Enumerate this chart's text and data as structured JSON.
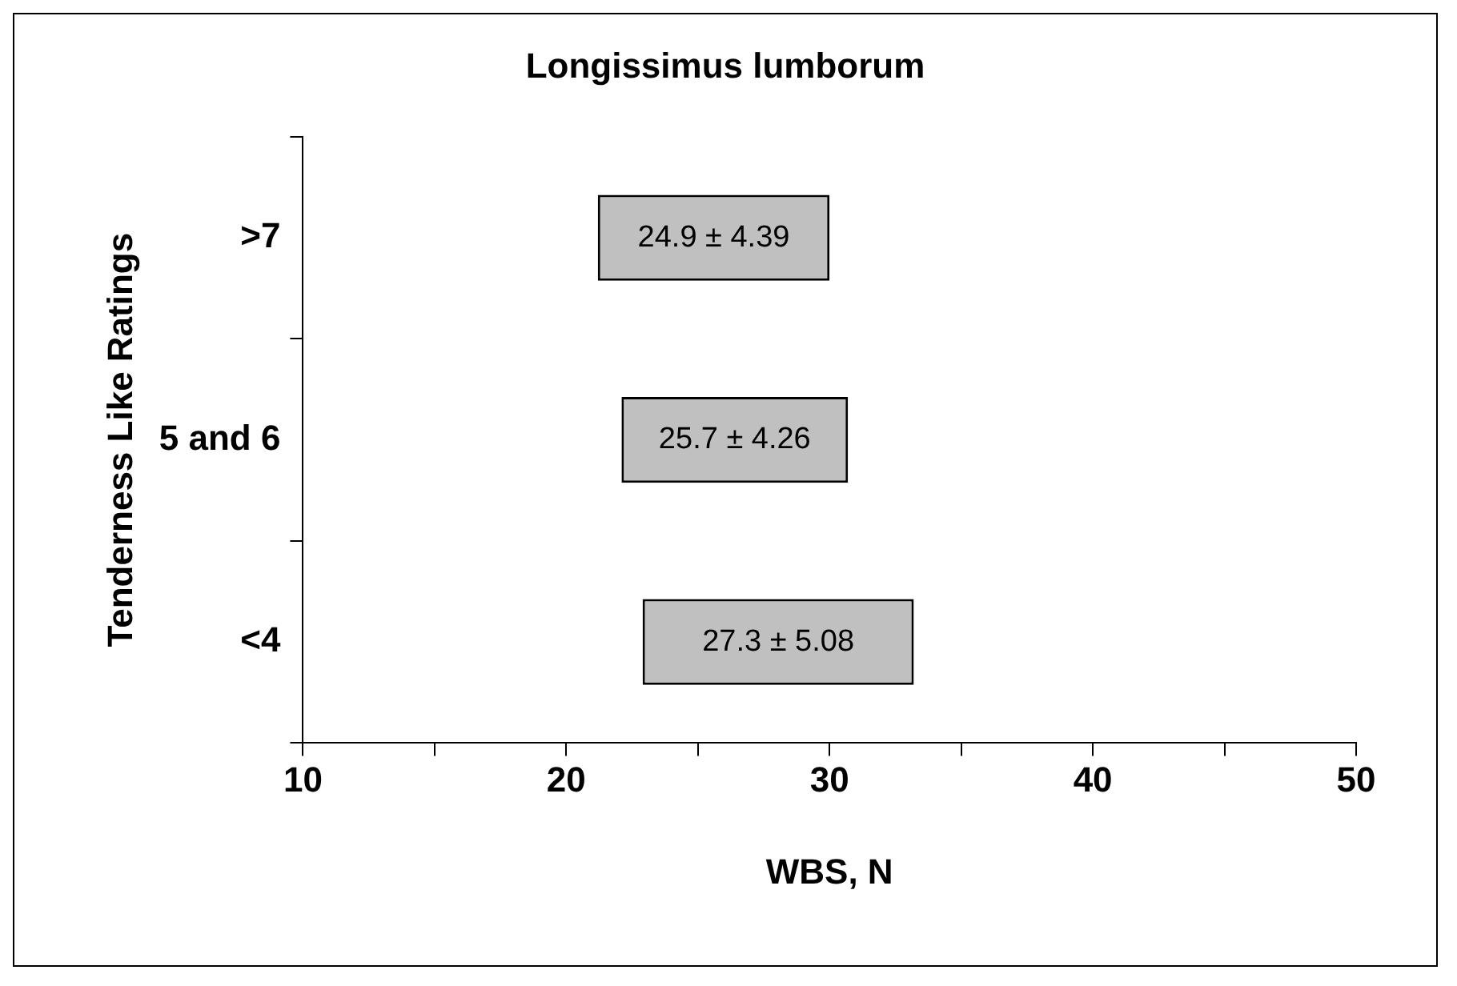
{
  "chart_data": {
    "type": "bar",
    "orientation": "horizontal",
    "title": "Longissimus lumborum",
    "xlabel": "WBS, N",
    "ylabel": "Tenderness Like Ratings",
    "categories": [
      ">7",
      "5 and 6",
      "<4"
    ],
    "base": [
      21.2,
      22.1,
      22.9
    ],
    "values": [
      8.8,
      8.6,
      10.3
    ],
    "annotations": [
      "24.9 ± 4.39",
      "25.7 ± 4.26",
      "27.3 ± 5.08"
    ],
    "color": "#c0c0c0",
    "xlim": [
      10,
      50
    ],
    "xticks": [
      10,
      {
        "value": 15,
        "label": null
      },
      20,
      {
        "value": 25,
        "label": null
      },
      30,
      {
        "value": 35,
        "label": null
      },
      40,
      {
        "value": 45,
        "label": null
      },
      50
    ],
    "grid": false,
    "legend": false
  }
}
